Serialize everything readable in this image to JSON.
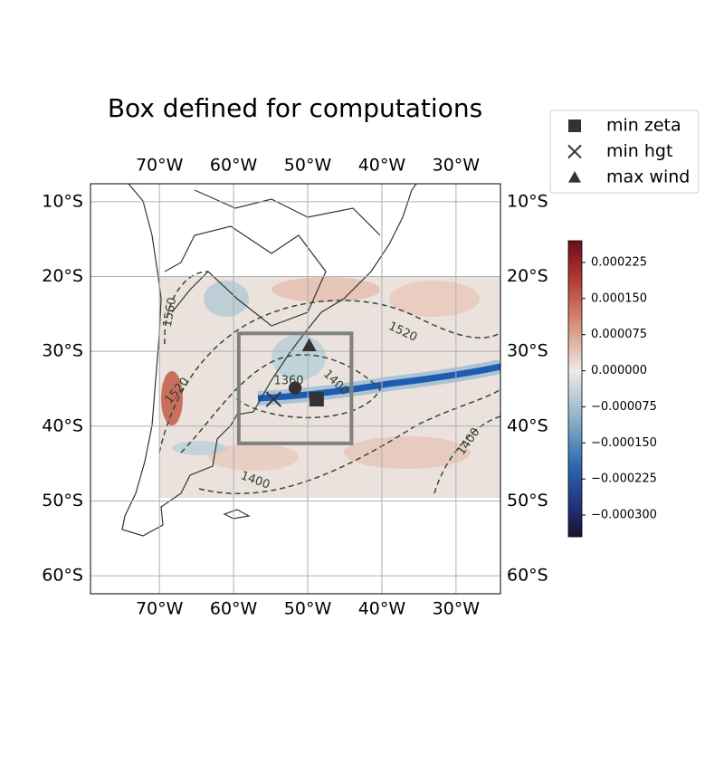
{
  "chart_data": {
    "type": "map",
    "title": "Box defined for computations",
    "xlim": [
      -79.3,
      -24.0
    ],
    "ylim": [
      -62.4,
      -7.6
    ],
    "xticks": [
      {
        "value": -70,
        "label": "70°W"
      },
      {
        "value": -60,
        "label": "60°W"
      },
      {
        "value": -50,
        "label": "50°W"
      },
      {
        "value": -40,
        "label": "40°W"
      },
      {
        "value": -30,
        "label": "30°W"
      }
    ],
    "yticks": [
      {
        "value": -10,
        "label": "10°S"
      },
      {
        "value": -20,
        "label": "20°S"
      },
      {
        "value": -30,
        "label": "30°S"
      },
      {
        "value": -40,
        "label": "40°S"
      },
      {
        "value": -50,
        "label": "50°S"
      },
      {
        "value": -60,
        "label": "60°S"
      }
    ],
    "grid": true,
    "box": {
      "color": "#808080",
      "x": [
        -59.3,
        -44.1
      ],
      "y": [
        -27.6,
        -42.3
      ]
    },
    "series": [
      {
        "name": "min zeta",
        "marker": "square",
        "color": "#333333",
        "x": [
          -48.8
        ],
        "y": [
          -36.4
        ]
      },
      {
        "name": "min hgt",
        "marker": "x",
        "color": "#333333",
        "x": [
          -54.6
        ],
        "y": [
          -36.4
        ]
      },
      {
        "name": "max wind",
        "marker": "triangle",
        "color": "#333333",
        "x": [
          -49.8
        ],
        "y": [
          -29.2
        ]
      }
    ],
    "points": {
      "marker": "circle",
      "color": "#333333",
      "x": [
        -51.7
      ],
      "y": [
        -34.9
      ]
    },
    "contour_labels": [
      "1560",
      "1520",
      "1520",
      "1360",
      "1400",
      "1400",
      "1400"
    ],
    "colorbar": {
      "lim": [
        -0.000345,
        0.00027
      ],
      "ticks": [
        {
          "value": 0.000225,
          "label": "0.000225"
        },
        {
          "value": 0.00015,
          "label": "0.000150"
        },
        {
          "value": 7.5e-05,
          "label": "0.000075"
        },
        {
          "value": 0,
          "label": "0.000000"
        },
        {
          "value": -7.5e-05,
          "label": "−0.000075"
        },
        {
          "value": -0.00015,
          "label": "−0.000150"
        },
        {
          "value": -0.000225,
          "label": "−0.000225"
        },
        {
          "value": -0.0003,
          "label": "−0.000300"
        }
      ]
    }
  }
}
